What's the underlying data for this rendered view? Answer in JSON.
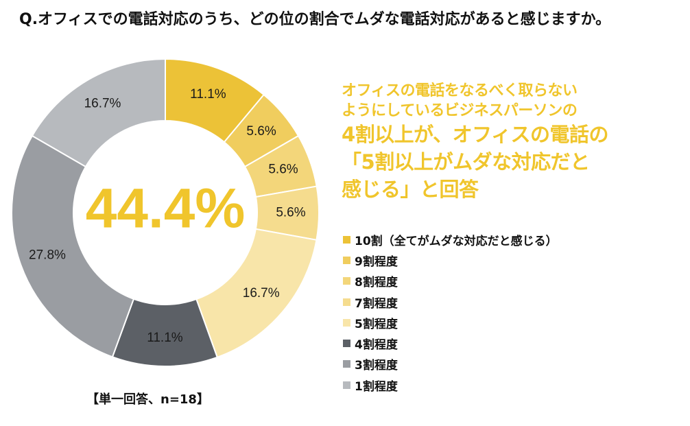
{
  "question": "Q.オフィスでの電話対応のうち、どの位の割合でムダな電話対応があると感じますか。",
  "note": "【単一回答、n=18】",
  "headline": {
    "sub_lines": [
      "オフィスの電話をなるべく取らない",
      "ようにしているビジネスパーソンの"
    ],
    "main_lines": [
      "4割以上が、オフィスの電話の",
      "「5割以上がムダな対応だと",
      "感じる」と回答"
    ]
  },
  "chart_data": {
    "type": "pie",
    "variant": "donut",
    "title": "Q.オフィスでの電話対応のうち、どの位の割合でムダな電話対応があると感じますか。",
    "center_label": "44.4%",
    "unit": "%",
    "slices": [
      {
        "label": "10割（全てがムダな対応だと感じる）",
        "value": 11.1,
        "display": "11.1%",
        "color": "#ecc237"
      },
      {
        "label": "9割程度",
        "value": 5.6,
        "display": "5.6%",
        "color": "#f0cd5e"
      },
      {
        "label": "8割程度",
        "value": 5.6,
        "display": "5.6%",
        "color": "#f3d67a"
      },
      {
        "label": "7割程度",
        "value": 5.6,
        "display": "5.6%",
        "color": "#f5dc8e"
      },
      {
        "label": "5割程度",
        "value": 16.7,
        "display": "16.7%",
        "color": "#f8e5a9"
      },
      {
        "label": "4割程度",
        "value": 11.1,
        "display": "11.1%",
        "color": "#5c6066"
      },
      {
        "label": "3割程度",
        "value": 27.8,
        "display": "27.8%",
        "color": "#9a9da2"
      },
      {
        "label": "1割程度",
        "value": 16.7,
        "display": "16.7%",
        "color": "#b7babe"
      }
    ],
    "legend_position": "right",
    "colors": {
      "center_text": "#f0c52c",
      "slice_border": "#ffffff",
      "label_text": "#1a1a1a"
    }
  }
}
